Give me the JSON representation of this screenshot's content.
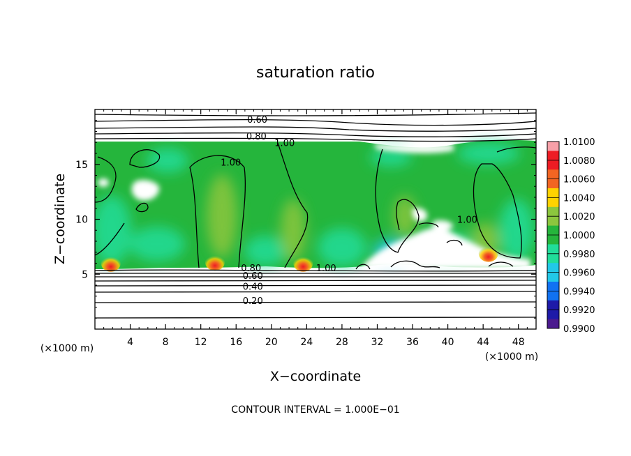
{
  "chart_data": {
    "type": "heatmap",
    "title": "saturation ratio",
    "xlabel": "X−coordinate",
    "ylabel": "Z−coordinate",
    "x_unit": "(×1000 m)",
    "y_unit": "(×1000 m)",
    "xlim": [
      0,
      50
    ],
    "ylim": [
      0,
      20
    ],
    "x_ticks": [
      "4",
      "8",
      "12",
      "16",
      "20",
      "24",
      "28",
      "32",
      "36",
      "40",
      "44",
      "48"
    ],
    "y_ticks": [
      "5",
      "10",
      "15"
    ],
    "colorbar": {
      "levels": [
        "1.0100",
        "1.0080",
        "1.0060",
        "1.0040",
        "1.0020",
        "1.0000",
        "0.9980",
        "0.9960",
        "0.9940",
        "0.9920",
        "0.9900"
      ],
      "colors": [
        "#f7a0a8",
        "#ee1c24",
        "#f26522",
        "#ffd200",
        "#8cc63e",
        "#25b53c",
        "#21dd9a",
        "#22c8e8",
        "#1172f2",
        "#1e1aa8",
        "#4b1a8e"
      ]
    },
    "contour_labels": [
      {
        "text": "0.60",
        "x": 18.4,
        "z": 19.1
      },
      {
        "text": "0.80",
        "x": 18.3,
        "z": 17.6
      },
      {
        "text": "1.00",
        "x": 21.5,
        "z": 17.0
      },
      {
        "text": "1.00",
        "x": 15.4,
        "z": 15.2
      },
      {
        "text": "1.00",
        "x": 42.2,
        "z": 10.0
      },
      {
        "text": "0.80",
        "x": 17.7,
        "z": 5.6
      },
      {
        "text": "1.00",
        "x": 26.2,
        "z": 5.6
      },
      {
        "text": "0.60",
        "x": 17.9,
        "z": 4.9
      },
      {
        "text": "0.40",
        "x": 17.9,
        "z": 3.9
      },
      {
        "text": "0.20",
        "x": 17.9,
        "z": 2.6
      }
    ],
    "hot_spots": [
      {
        "x": 1.8,
        "z": 5.6
      },
      {
        "x": 13.6,
        "z": 5.7
      },
      {
        "x": 23.6,
        "z": 5.6
      },
      {
        "x": 44.6,
        "z": 6.5
      }
    ],
    "contour_interval": "CONTOUR INTERVAL = 1.000E−01"
  }
}
